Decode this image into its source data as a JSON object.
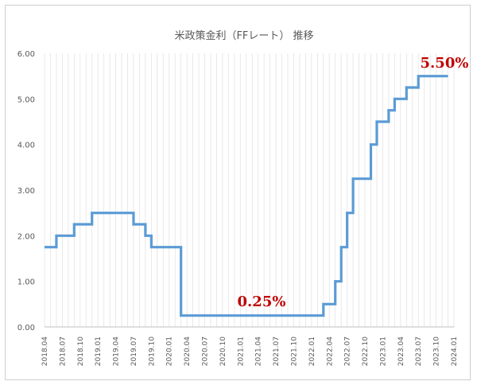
{
  "chart_data": {
    "type": "line",
    "step": true,
    "title": "米政策金利（FFレート） 推移",
    "xlabel": "",
    "ylabel": "",
    "ylim": [
      0,
      6
    ],
    "yticks": [
      "0.00",
      "1.00",
      "2.00",
      "3.00",
      "4.00",
      "5.00",
      "6.00"
    ],
    "xticks": [
      "2018.04",
      "2018.07",
      "2018.10",
      "2019.01",
      "2019.04",
      "2019.07",
      "2019.10",
      "2020.01",
      "2020.04",
      "2020.07",
      "2020.10",
      "2021.01",
      "2021.04",
      "2021.07",
      "2021.10",
      "2022.01",
      "2022.04",
      "2022.07",
      "2022.10",
      "2023.01",
      "2023.04",
      "2023.07",
      "2023.10",
      "2024.01"
    ],
    "grid": "vertical-monthly",
    "series": [
      {
        "name": "",
        "color": "#5b9bd5",
        "points": [
          [
            "2018.04",
            1.75
          ],
          [
            "2018.06",
            2.0
          ],
          [
            "2018.09",
            2.25
          ],
          [
            "2018.12",
            2.5
          ],
          [
            "2019.07",
            2.25
          ],
          [
            "2019.09",
            2.0
          ],
          [
            "2019.10",
            1.75
          ],
          [
            "2020.03",
            0.25
          ],
          [
            "2022.03",
            0.5
          ],
          [
            "2022.05",
            1.0
          ],
          [
            "2022.06",
            1.75
          ],
          [
            "2022.07",
            2.5
          ],
          [
            "2022.08",
            3.25
          ],
          [
            "2022.11",
            4.0
          ],
          [
            "2022.12",
            4.5
          ],
          [
            "2023.02",
            4.75
          ],
          [
            "2023.03",
            5.0
          ],
          [
            "2023.05",
            5.25
          ],
          [
            "2023.07",
            5.5
          ],
          [
            "2023.12",
            5.5
          ]
        ]
      }
    ],
    "annotations": [
      {
        "text": "0.25%",
        "color": "#c00000"
      },
      {
        "text": "5.50%",
        "color": "#c00000"
      }
    ]
  }
}
